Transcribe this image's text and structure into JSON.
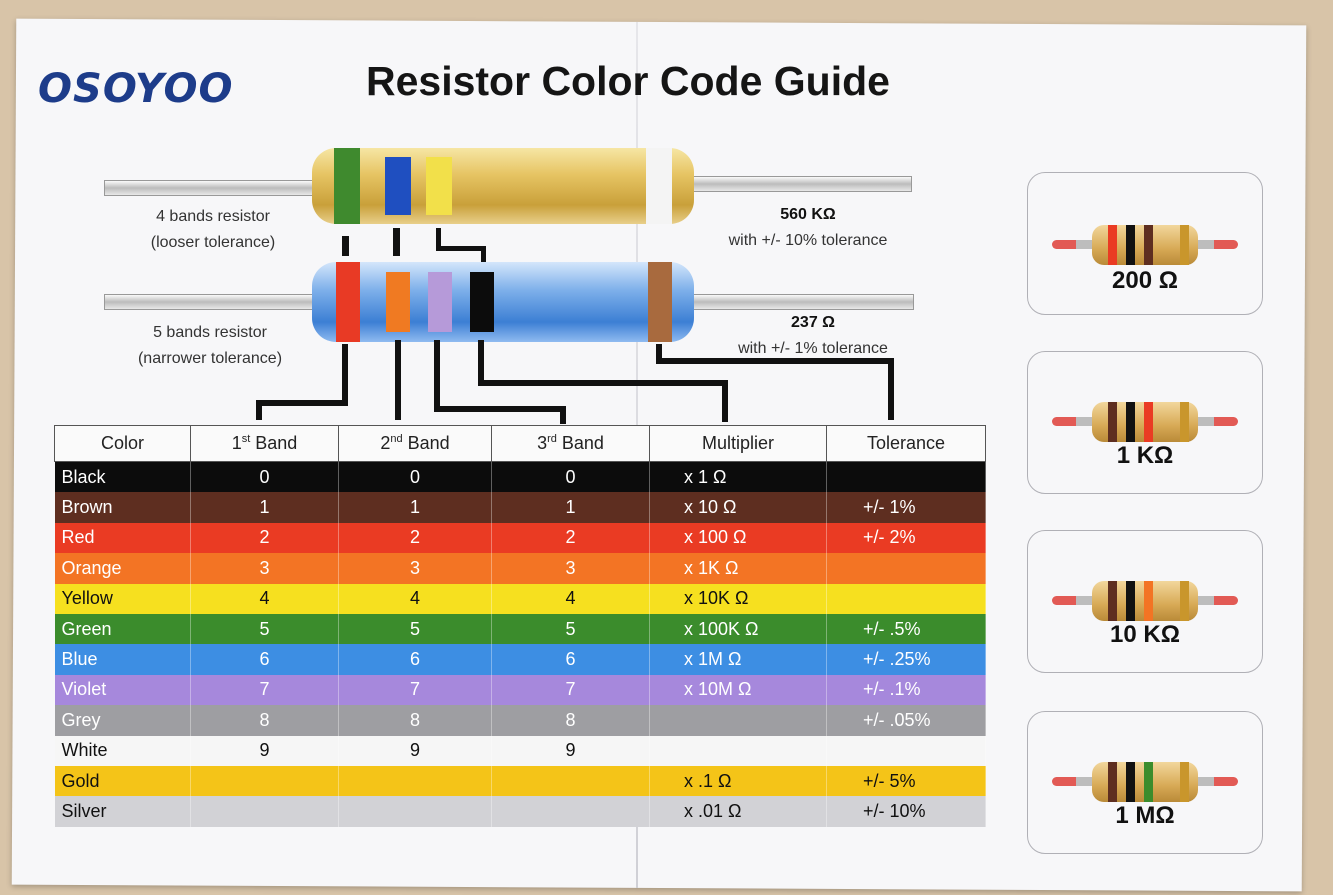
{
  "header": {
    "logo": "OSOYOO",
    "title": "Resistor Color Code Guide"
  },
  "resistor4": {
    "name": "4 bands resistor",
    "note": "(looser tolerance)",
    "value": "560 KΩ",
    "tolerance": "with +/- 10% tolerance",
    "bands": [
      "#3f8a2e",
      "#1f4fc0",
      "#f2e04a",
      "#f4f4f4"
    ]
  },
  "resistor5": {
    "name": "5 bands resistor",
    "note": "(narrower tolerance)",
    "value": "237 Ω",
    "tolerance": "with +/- 1% tolerance",
    "bands": [
      "#e83a25",
      "#f07a22",
      "#b69ad9",
      "#0c0c0c",
      "#a86a3e"
    ]
  },
  "table": {
    "headers": {
      "color": "Color",
      "band1": "1",
      "band1_sup": "st",
      "band1_suffix": " Band",
      "band2": "2",
      "band2_sup": "nd",
      "band2_suffix": " Band",
      "band3": "3",
      "band3_sup": "rd",
      "band3_suffix": " Band",
      "multiplier": "Multiplier",
      "tolerance": "Tolerance"
    },
    "rows": [
      {
        "name": "Black",
        "bg": "#0c0c0c",
        "fg": "#ffffff",
        "b1": "0",
        "b2": "0",
        "b3": "0",
        "mult": "x 1 Ω",
        "tol": ""
      },
      {
        "name": "Brown",
        "bg": "#5e2e20",
        "fg": "#ffffff",
        "b1": "1",
        "b2": "1",
        "b3": "1",
        "mult": "x 10 Ω",
        "tol": "+/-  1%"
      },
      {
        "name": "Red",
        "bg": "#ea3b23",
        "fg": "#ffffff",
        "b1": "2",
        "b2": "2",
        "b3": "2",
        "mult": "x 100 Ω",
        "tol": "+/-  2%"
      },
      {
        "name": "Orange",
        "bg": "#f37424",
        "fg": "#ffffff",
        "b1": "3",
        "b2": "3",
        "b3": "3",
        "mult": "x 1K Ω",
        "tol": ""
      },
      {
        "name": "Yellow",
        "bg": "#f6e01f",
        "fg": "#111111",
        "b1": "4",
        "b2": "4",
        "b3": "4",
        "mult": "x 10K Ω",
        "tol": ""
      },
      {
        "name": "Green",
        "bg": "#3b8c2c",
        "fg": "#ffffff",
        "b1": "5",
        "b2": "5",
        "b3": "5",
        "mult": "x 100K Ω",
        "tol": "+/-  .5%"
      },
      {
        "name": "Blue",
        "bg": "#3d8ee3",
        "fg": "#ffffff",
        "b1": "6",
        "b2": "6",
        "b3": "6",
        "mult": "x 1M Ω",
        "tol": "+/-  .25%"
      },
      {
        "name": "Violet",
        "bg": "#a688dc",
        "fg": "#ffffff",
        "b1": "7",
        "b2": "7",
        "b3": "7",
        "mult": "x 10M Ω",
        "tol": "+/-  .1%"
      },
      {
        "name": "Grey",
        "bg": "#9e9ea2",
        "fg": "#ffffff",
        "b1": "8",
        "b2": "8",
        "b3": "8",
        "mult": "",
        "tol": "+/-  .05%"
      },
      {
        "name": "White",
        "bg": "#f6f6f6",
        "fg": "#111111",
        "b1": "9",
        "b2": "9",
        "b3": "9",
        "mult": "",
        "tol": ""
      },
      {
        "name": "Gold",
        "bg": "#f4c418",
        "fg": "#111111",
        "b1": "",
        "b2": "",
        "b3": "",
        "mult": "x .1 Ω",
        "tol": "+/-  5%"
      },
      {
        "name": "Silver",
        "bg": "#d2d2d6",
        "fg": "#111111",
        "b1": "",
        "b2": "",
        "b3": "",
        "mult": "x .01 Ω",
        "tol": "+/-  10%"
      }
    ]
  },
  "examples": [
    {
      "label": "200 Ω",
      "bands": [
        "#ea3b23",
        "#111111",
        "#5e2e20",
        "#c9962c"
      ]
    },
    {
      "label": "1 KΩ",
      "bands": [
        "#5e2e20",
        "#111111",
        "#ea3b23",
        "#c9962c"
      ]
    },
    {
      "label": "10 KΩ",
      "bands": [
        "#5e2e20",
        "#111111",
        "#f37424",
        "#c9962c"
      ]
    },
    {
      "label": "1 MΩ",
      "bands": [
        "#5e2e20",
        "#111111",
        "#3b8c2c",
        "#c9962c"
      ]
    }
  ]
}
